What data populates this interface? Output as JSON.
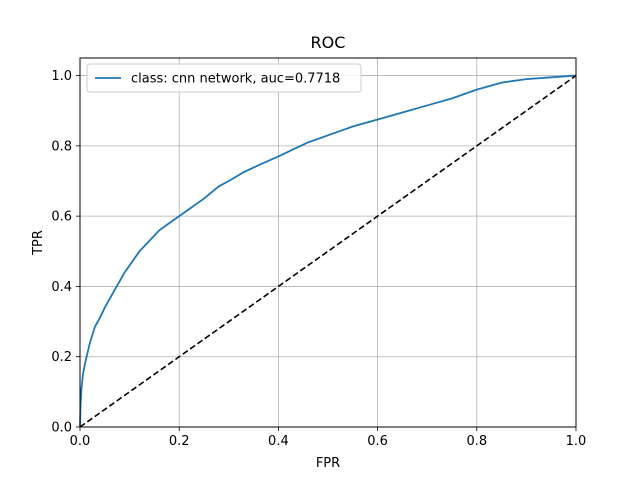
{
  "chart_data": {
    "type": "line",
    "title": "ROC",
    "xlabel": "FPR",
    "ylabel": "TPR",
    "xlim": [
      0.0,
      1.0
    ],
    "ylim": [
      0.0,
      1.05
    ],
    "xticks": [
      0.0,
      0.2,
      0.4,
      0.6,
      0.8,
      1.0
    ],
    "yticks": [
      0.0,
      0.2,
      0.4,
      0.6,
      0.8,
      1.0
    ],
    "xtick_labels": [
      "0.0",
      "0.2",
      "0.4",
      "0.6",
      "0.8",
      "1.0"
    ],
    "ytick_labels": [
      "0.0",
      "0.2",
      "0.4",
      "0.6",
      "0.8",
      "1.0"
    ],
    "grid": true,
    "legend_position": "top-left",
    "series": [
      {
        "name": "class: cnn network, auc=0.7718",
        "color": "#1f77b4",
        "style": "solid",
        "x": [
          0.0,
          0.001,
          0.003,
          0.006,
          0.01,
          0.015,
          0.02,
          0.03,
          0.04,
          0.05,
          0.06,
          0.07,
          0.08,
          0.09,
          0.1,
          0.12,
          0.14,
          0.16,
          0.18,
          0.2,
          0.22,
          0.25,
          0.28,
          0.3,
          0.33,
          0.36,
          0.4,
          0.43,
          0.46,
          0.5,
          0.55,
          0.6,
          0.65,
          0.7,
          0.75,
          0.8,
          0.85,
          0.9,
          0.95,
          1.0
        ],
        "y": [
          0.0,
          0.06,
          0.11,
          0.15,
          0.18,
          0.21,
          0.24,
          0.285,
          0.31,
          0.34,
          0.365,
          0.39,
          0.415,
          0.44,
          0.46,
          0.5,
          0.53,
          0.56,
          0.58,
          0.6,
          0.62,
          0.65,
          0.685,
          0.7,
          0.725,
          0.745,
          0.77,
          0.79,
          0.81,
          0.83,
          0.855,
          0.875,
          0.895,
          0.915,
          0.935,
          0.96,
          0.98,
          0.99,
          0.995,
          1.0
        ]
      },
      {
        "name": "",
        "color": "#000000",
        "style": "dashed",
        "x": [
          0.0,
          1.0
        ],
        "y": [
          0.0,
          1.0
        ]
      }
    ]
  }
}
